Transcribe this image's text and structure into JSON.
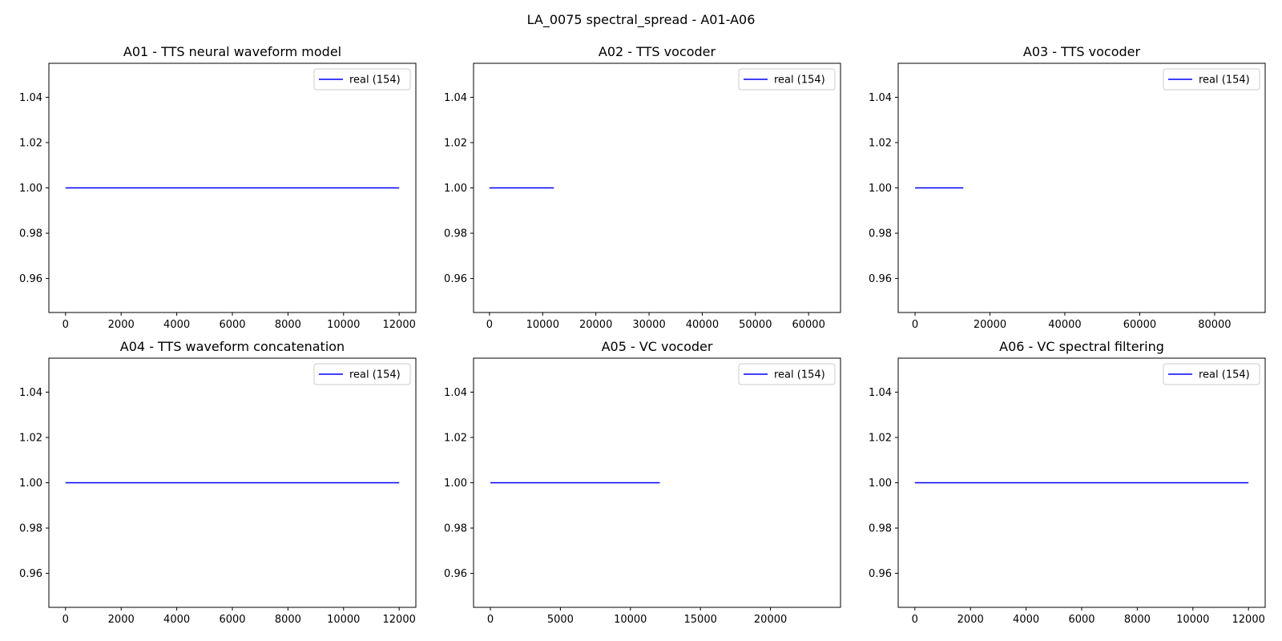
{
  "figure": {
    "title": "LA_0075 spectral_spread - A01-A06"
  },
  "chart_data": [
    {
      "type": "line",
      "title": "A01 - TTS neural waveform model",
      "xlabel": "",
      "ylabel": "",
      "xlim": [
        -600,
        12600
      ],
      "ylim": [
        0.945,
        1.055
      ],
      "xticks": [
        0,
        2000,
        4000,
        6000,
        8000,
        10000,
        12000
      ],
      "yticks": [
        0.96,
        0.98,
        1.0,
        1.02,
        1.04
      ],
      "xtick_labels": [
        "0",
        "2000",
        "4000",
        "6000",
        "8000",
        "10000",
        "12000"
      ],
      "ytick_labels": [
        "0.96",
        "0.98",
        "1.00",
        "1.02",
        "1.04"
      ],
      "legend": "upper-right",
      "series": [
        {
          "name": "real (154)",
          "color": "#0000ff",
          "x": [
            0,
            12000
          ],
          "y": [
            1.0,
            1.0
          ]
        }
      ]
    },
    {
      "type": "line",
      "title": "A02 - TTS vocoder",
      "xlabel": "",
      "ylabel": "",
      "xlim": [
        -3000,
        66000
      ],
      "ylim": [
        0.945,
        1.055
      ],
      "xticks": [
        0,
        10000,
        20000,
        30000,
        40000,
        50000,
        60000
      ],
      "yticks": [
        0.96,
        0.98,
        1.0,
        1.02,
        1.04
      ],
      "xtick_labels": [
        "0",
        "10000",
        "20000",
        "30000",
        "40000",
        "50000",
        "60000"
      ],
      "ytick_labels": [
        "0.96",
        "0.98",
        "1.00",
        "1.02",
        "1.04"
      ],
      "legend": "upper-right",
      "series": [
        {
          "name": "real (154)",
          "color": "#0000ff",
          "x": [
            0,
            12100
          ],
          "y": [
            1.0,
            1.0
          ]
        }
      ]
    },
    {
      "type": "line",
      "title": "A03 - TTS vocoder",
      "xlabel": "",
      "ylabel": "",
      "xlim": [
        -4500,
        93500
      ],
      "ylim": [
        0.945,
        1.055
      ],
      "xticks": [
        0,
        20000,
        40000,
        60000,
        80000
      ],
      "yticks": [
        0.96,
        0.98,
        1.0,
        1.02,
        1.04
      ],
      "xtick_labels": [
        "0",
        "20000",
        "40000",
        "60000",
        "80000"
      ],
      "ytick_labels": [
        "0.96",
        "0.98",
        "1.00",
        "1.02",
        "1.04"
      ],
      "legend": "upper-right",
      "series": [
        {
          "name": "real (154)",
          "color": "#0000ff",
          "x": [
            0,
            12900
          ],
          "y": [
            1.0,
            1.0
          ]
        }
      ]
    },
    {
      "type": "line",
      "title": "A04 - TTS waveform concatenation",
      "xlabel": "",
      "ylabel": "",
      "xlim": [
        -600,
        12600
      ],
      "ylim": [
        0.945,
        1.055
      ],
      "xticks": [
        0,
        2000,
        4000,
        6000,
        8000,
        10000,
        12000
      ],
      "yticks": [
        0.96,
        0.98,
        1.0,
        1.02,
        1.04
      ],
      "xtick_labels": [
        "0",
        "2000",
        "4000",
        "6000",
        "8000",
        "10000",
        "12000"
      ],
      "ytick_labels": [
        "0.96",
        "0.98",
        "1.00",
        "1.02",
        "1.04"
      ],
      "legend": "upper-right",
      "series": [
        {
          "name": "real (154)",
          "color": "#0000ff",
          "x": [
            0,
            12000
          ],
          "y": [
            1.0,
            1.0
          ]
        }
      ]
    },
    {
      "type": "line",
      "title": "A05 - VC vocoder",
      "xlabel": "",
      "ylabel": "",
      "xlim": [
        -1200,
        25000
      ],
      "ylim": [
        0.945,
        1.055
      ],
      "xticks": [
        0,
        5000,
        10000,
        15000,
        20000
      ],
      "yticks": [
        0.96,
        0.98,
        1.0,
        1.02,
        1.04
      ],
      "xtick_labels": [
        "0",
        "5000",
        "10000",
        "15000",
        "20000"
      ],
      "ytick_labels": [
        "0.96",
        "0.98",
        "1.00",
        "1.02",
        "1.04"
      ],
      "legend": "upper-right",
      "series": [
        {
          "name": "real (154)",
          "color": "#0000ff",
          "x": [
            0,
            12100
          ],
          "y": [
            1.0,
            1.0
          ]
        }
      ]
    },
    {
      "type": "line",
      "title": "A06 - VC spectral filtering",
      "xlabel": "",
      "ylabel": "",
      "xlim": [
        -600,
        12600
      ],
      "ylim": [
        0.945,
        1.055
      ],
      "xticks": [
        0,
        2000,
        4000,
        6000,
        8000,
        10000,
        12000
      ],
      "yticks": [
        0.96,
        0.98,
        1.0,
        1.02,
        1.04
      ],
      "xtick_labels": [
        "0",
        "2000",
        "4000",
        "6000",
        "8000",
        "10000",
        "12000"
      ],
      "ytick_labels": [
        "0.96",
        "0.98",
        "1.00",
        "1.02",
        "1.04"
      ],
      "legend": "upper-right",
      "series": [
        {
          "name": "real (154)",
          "color": "#0000ff",
          "x": [
            0,
            12000
          ],
          "y": [
            1.0,
            1.0
          ]
        }
      ]
    }
  ]
}
